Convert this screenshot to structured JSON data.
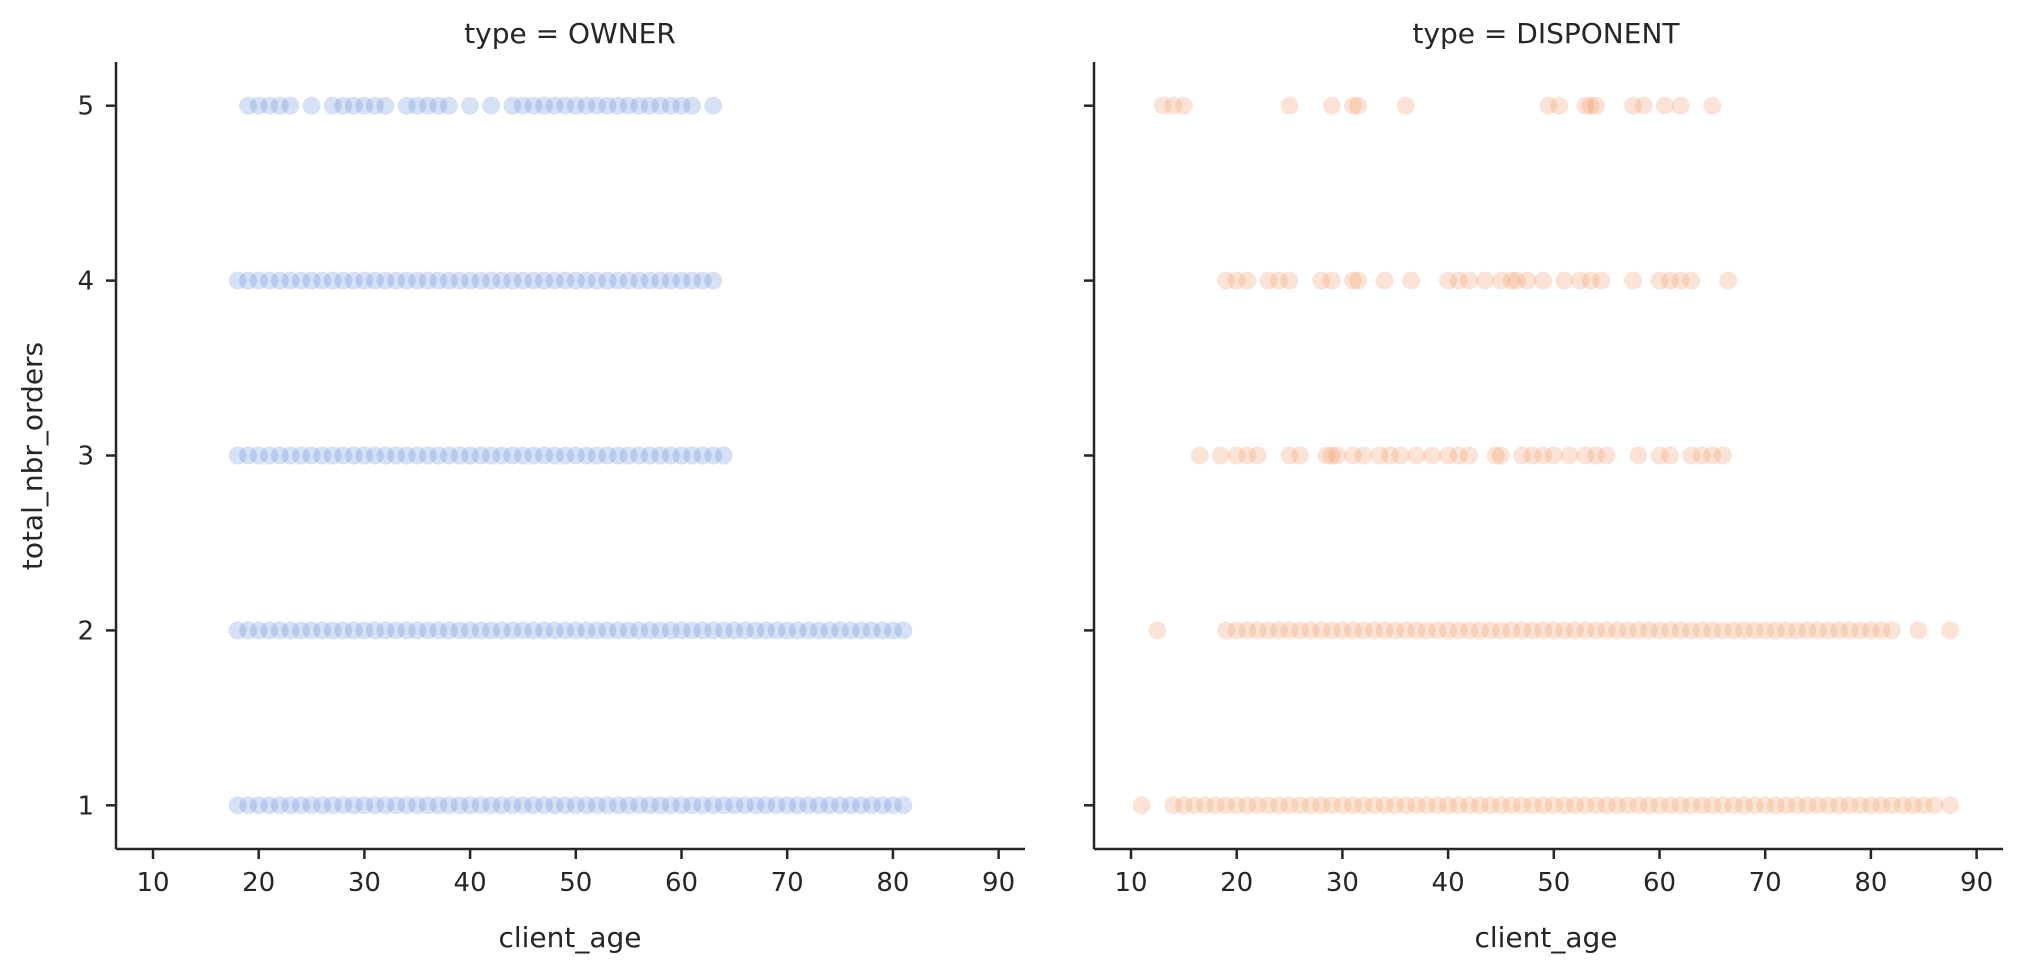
{
  "chart_data": [
    {
      "type": "scatter",
      "title": "type = OWNER",
      "xlabel": "client_age",
      "ylabel": "total_nbr_orders",
      "xlim": [
        6.5,
        92.5
      ],
      "ylim": [
        0.75,
        5.25
      ],
      "xticks": [
        "10",
        "20",
        "30",
        "40",
        "50",
        "60",
        "70",
        "80",
        "90"
      ],
      "yticks": [
        "1",
        "2",
        "3",
        "4",
        "5"
      ],
      "grid": false,
      "color": "#4878d0",
      "series": [
        {
          "y": 5,
          "x": [
            19,
            20,
            21,
            22,
            23,
            25,
            27,
            28,
            29,
            30,
            31,
            32,
            34,
            35,
            36,
            37,
            38,
            40,
            42,
            44,
            45,
            46,
            47,
            48,
            49,
            50,
            51,
            52,
            53,
            54,
            55,
            56,
            57,
            58,
            59,
            60,
            61,
            63
          ]
        },
        {
          "y": 4,
          "x": [
            18,
            19,
            20,
            21,
            22,
            23,
            24,
            25,
            26,
            27,
            28,
            29,
            30,
            31,
            32,
            33,
            34,
            35,
            36,
            37,
            38,
            39,
            40,
            41,
            42,
            43,
            44,
            45,
            46,
            47,
            48,
            49,
            50,
            51,
            52,
            53,
            54,
            55,
            56,
            57,
            58,
            59,
            60,
            61,
            62,
            63
          ]
        },
        {
          "y": 3,
          "x": [
            18,
            19,
            20,
            21,
            22,
            23,
            24,
            25,
            26,
            27,
            28,
            29,
            30,
            31,
            32,
            33,
            34,
            35,
            36,
            37,
            38,
            39,
            40,
            41,
            42,
            43,
            44,
            45,
            46,
            47,
            48,
            49,
            50,
            51,
            52,
            53,
            54,
            55,
            56,
            57,
            58,
            59,
            60,
            61,
            62,
            63,
            64
          ]
        },
        {
          "y": 2,
          "x": [
            18,
            19,
            20,
            21,
            22,
            23,
            24,
            25,
            26,
            27,
            28,
            29,
            30,
            31,
            32,
            33,
            34,
            35,
            36,
            37,
            38,
            39,
            40,
            41,
            42,
            43,
            44,
            45,
            46,
            47,
            48,
            49,
            50,
            51,
            52,
            53,
            54,
            55,
            56,
            57,
            58,
            59,
            60,
            61,
            62,
            63,
            64,
            65,
            66,
            67,
            68,
            69,
            70,
            71,
            72,
            73,
            74,
            75,
            76,
            77,
            78,
            79,
            80,
            81
          ]
        },
        {
          "y": 1,
          "x": [
            18,
            19,
            20,
            21,
            22,
            23,
            24,
            25,
            26,
            27,
            28,
            29,
            30,
            31,
            32,
            33,
            34,
            35,
            36,
            37,
            38,
            39,
            40,
            41,
            42,
            43,
            44,
            45,
            46,
            47,
            48,
            49,
            50,
            51,
            52,
            53,
            54,
            55,
            56,
            57,
            58,
            59,
            60,
            61,
            62,
            63,
            64,
            65,
            66,
            67,
            68,
            69,
            70,
            71,
            72,
            73,
            74,
            75,
            76,
            77,
            78,
            79,
            80,
            81
          ]
        }
      ]
    },
    {
      "type": "scatter",
      "title": "type = DISPONENT",
      "xlabel": "client_age",
      "ylabel": "",
      "xlim": [
        6.5,
        92.5
      ],
      "ylim": [
        0.75,
        5.25
      ],
      "xticks": [
        "10",
        "20",
        "30",
        "40",
        "50",
        "60",
        "70",
        "80",
        "90"
      ],
      "yticks": [
        "1",
        "2",
        "3",
        "4",
        "5"
      ],
      "grid": false,
      "color": "#ee854a",
      "series": [
        {
          "y": 5,
          "x": [
            13,
            14,
            15,
            25,
            29,
            31,
            31.5,
            36,
            49.5,
            50.5,
            53,
            53.5,
            54,
            57.5,
            58.5,
            60.5,
            62,
            65
          ]
        },
        {
          "y": 4,
          "x": [
            19,
            20,
            21,
            23,
            24,
            25,
            28,
            29,
            31,
            31.5,
            34,
            36.5,
            40,
            41,
            42,
            43.5,
            45,
            46,
            46.5,
            47.5,
            49,
            51,
            52.5,
            53.5,
            54.5,
            57.5,
            60,
            61,
            62,
            63,
            66.5
          ]
        },
        {
          "y": 3,
          "x": [
            16.5,
            18.5,
            20,
            21,
            22,
            25,
            26,
            28.5,
            29,
            29.5,
            31,
            32,
            33.5,
            34.5,
            35.5,
            37,
            38.5,
            40,
            41,
            42,
            44.5,
            45,
            47,
            48,
            49,
            50,
            51.5,
            53,
            54,
            55,
            58,
            60,
            61,
            63,
            64,
            65,
            66
          ]
        },
        {
          "y": 2,
          "x": [
            12.5,
            19,
            20,
            21,
            22,
            23,
            24,
            25,
            26,
            27,
            28,
            29,
            30,
            31,
            32,
            33,
            34,
            35,
            36,
            37,
            38,
            39,
            40,
            41,
            42,
            43,
            44,
            45,
            46,
            47,
            48,
            49,
            50,
            51,
            52,
            53,
            54,
            55,
            56,
            57,
            58,
            59,
            60,
            61,
            62,
            63,
            64,
            65,
            66,
            67,
            68,
            69,
            70,
            71,
            72,
            73,
            74,
            75,
            76,
            77,
            78,
            79,
            80,
            81,
            82,
            84.5,
            87.5
          ]
        },
        {
          "y": 1,
          "x": [
            11,
            14,
            15,
            16,
            17,
            18,
            19,
            20,
            21,
            22,
            23,
            24,
            25,
            26,
            27,
            28,
            29,
            30,
            31,
            32,
            33,
            34,
            35,
            36,
            37,
            38,
            39,
            40,
            41,
            42,
            43,
            44,
            45,
            46,
            47,
            48,
            49,
            50,
            51,
            52,
            53,
            54,
            55,
            56,
            57,
            58,
            59,
            60,
            61,
            62,
            63,
            64,
            65,
            66,
            67,
            68,
            69,
            70,
            71,
            72,
            73,
            74,
            75,
            76,
            77,
            78,
            79,
            80,
            81,
            82,
            83,
            84,
            85,
            86,
            87.5
          ]
        }
      ]
    }
  ]
}
